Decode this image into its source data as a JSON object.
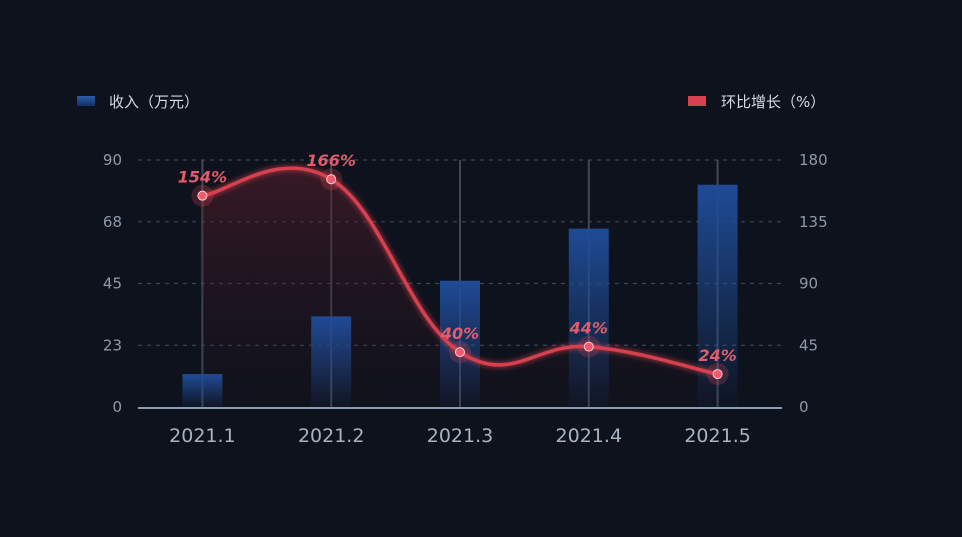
{
  "chart_data": {
    "type": "bar",
    "categories": [
      "2021.1",
      "2021.2",
      "2021.3",
      "2021.4",
      "2021.5"
    ],
    "series": [
      {
        "name": "收入（万元）",
        "type": "bar",
        "axis": "left",
        "values": [
          12,
          33,
          46,
          65,
          81
        ]
      },
      {
        "name": "环比增长（%）",
        "type": "line",
        "axis": "right",
        "values": [
          154,
          166,
          40,
          44,
          24
        ],
        "labels": [
          "154%",
          "166%",
          "40%",
          "44%",
          "24%"
        ]
      }
    ],
    "y_left": {
      "ticks": [
        "0",
        "23",
        "45",
        "68",
        "90"
      ],
      "ylim": [
        0,
        90
      ]
    },
    "y_right": {
      "ticks": [
        "0",
        "45",
        "90",
        "135",
        "180"
      ],
      "ylim": [
        0,
        180
      ]
    },
    "grid": true,
    "legend_placement": "top",
    "colors": {
      "bar": "#1f4b96",
      "line": "#d6404f",
      "background": "#0d121c"
    }
  }
}
